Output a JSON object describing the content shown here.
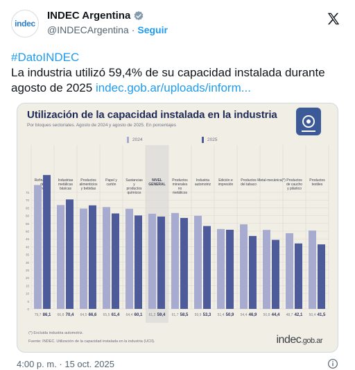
{
  "tweet": {
    "display_name": "INDEC Argentina",
    "handle": "@INDECArgentina",
    "separator": "·",
    "follow_label": "Seguir",
    "avatar_text": "indec",
    "hashtag": "#DatoINDEC",
    "text_main": "La industria utilizó 59,4% de su capacidad instalada durante agosto de 2025",
    "link_text": "indec.gob.ar/uploads/inform...",
    "timestamp": "4:00 p. m. · 15 oct. 2025"
  },
  "icons": {
    "verified": "verified-badge-icon",
    "x_logo": "x-logo-icon",
    "info": "info-icon"
  },
  "colors": {
    "accent": "#1d9bf0",
    "series_2024": "#a7abd0",
    "series_2025": "#4e5b9b",
    "title": "#1f2b55",
    "card_bg": "#f1eee6"
  },
  "infographic": {
    "title": "Utilización de la capacidad instalada en la industria",
    "subtitle": "Por bloques sectoriales. Agosto de 2024 y agosto de 2025. En porcentajes",
    "legend_2024": "2024",
    "legend_2025": "2025",
    "footnote": "(*) Excluida industria automotriz.",
    "source": "Fuente: INDEC. Utilización de la capacidad instalada en la industria (UCII).",
    "logo_main": "indec",
    "logo_domain": ".gob.ar"
  },
  "chart_data": {
    "type": "bar",
    "title": "Utilización de la capacidad instalada en la industria",
    "ylim": [
      0,
      100
    ],
    "yticks": [
      0,
      5,
      10,
      15,
      20,
      25,
      30,
      35,
      40,
      45,
      50,
      55,
      60,
      65,
      70,
      75
    ],
    "grid": true,
    "legend": "top-left",
    "categories": [
      "Refinación del petróleo",
      "Industrias metálicas básicas",
      "Productos alimenticios y bebidas",
      "Papel y cartón",
      "Sustancias y productos químicos",
      "NIVEL GENERAL",
      "Productos minerales no metálicos",
      "Industria automotriz",
      "Edición e impresión",
      "Productos del tabaco",
      "Metal-mecánica(*)",
      "Productos de caucho y plástico",
      "Productos textiles"
    ],
    "series": [
      {
        "name": "2024",
        "values": [
          79.7,
          66.8,
          64.5,
          65.5,
          64.4,
          61.2,
          61.7,
          59.9,
          51.4,
          54.4,
          50.8,
          48.7,
          50.4
        ],
        "labels": [
          "79,7",
          "66,8",
          "64,5",
          "65,5",
          "64,4",
          "61,2",
          "61,7",
          "59,9",
          "51,4",
          "54,4",
          "50,8",
          "48,7",
          "50,4"
        ]
      },
      {
        "name": "2025",
        "values": [
          86.1,
          70.4,
          66.6,
          61.4,
          60.1,
          59.4,
          58.5,
          53.3,
          50.9,
          46.9,
          44.4,
          42.1,
          41.5
        ],
        "labels": [
          "86,1",
          "70,4",
          "66,6",
          "61,4",
          "60,1",
          "59,4",
          "58,5",
          "53,3",
          "50,9",
          "46,9",
          "44,4",
          "42,1",
          "41,5"
        ]
      }
    ]
  }
}
